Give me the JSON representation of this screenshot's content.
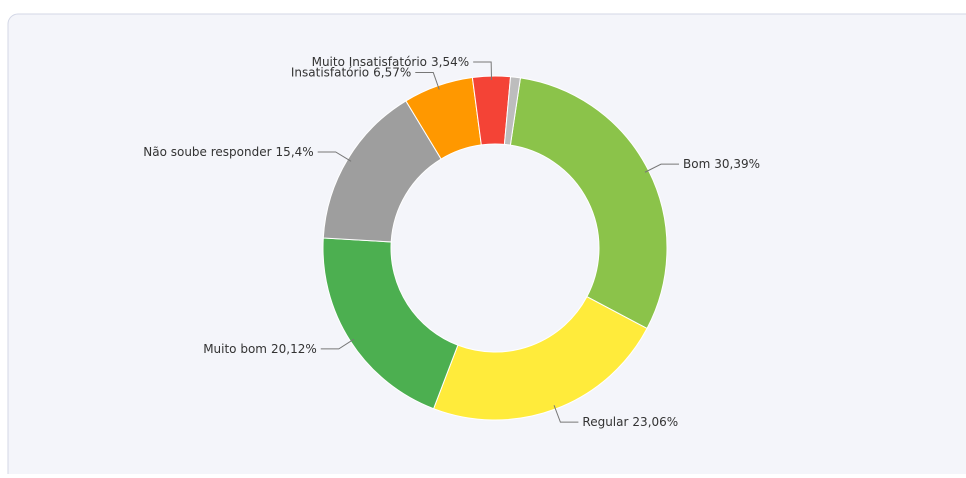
{
  "chart_data": {
    "type": "donut",
    "categories": [
      "Bom",
      "Regular",
      "Muito bom",
      "Não soube responder",
      "Insatisfatório",
      "Muito Insatisfatório",
      null
    ],
    "values": [
      30.39,
      23.06,
      20.12,
      15.4,
      6.57,
      3.54,
      0.92
    ],
    "value_labels": [
      "30,39%",
      "23,06%",
      "20,12%",
      "15,4%",
      "6,57%",
      "3,54%",
      null
    ],
    "colors": [
      "#8bc34a",
      "#ffeb3b",
      "#4caf50",
      "#9e9e9e",
      "#ff9800",
      "#f44336",
      "#bdbdbd"
    ]
  }
}
